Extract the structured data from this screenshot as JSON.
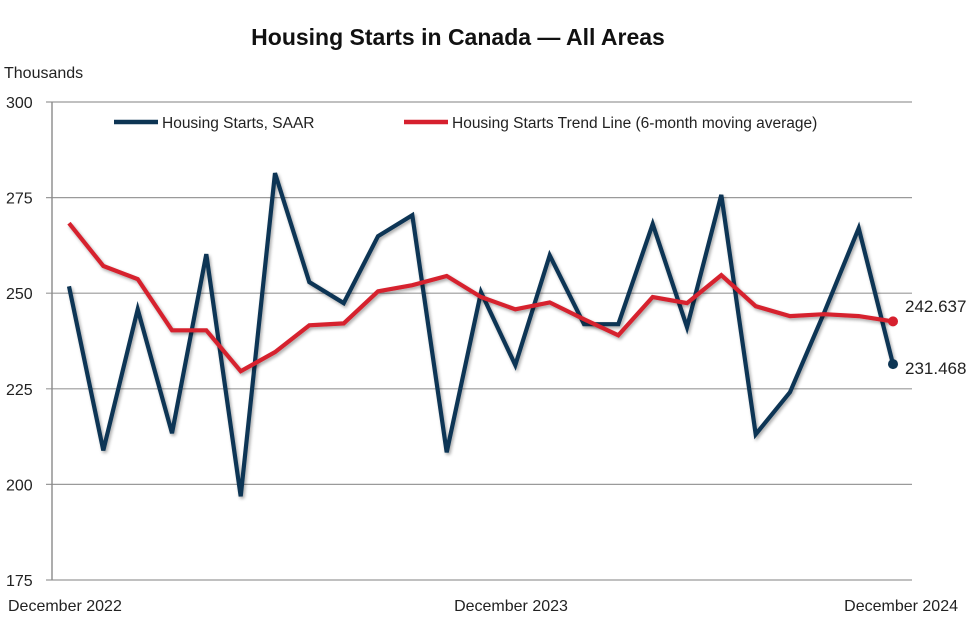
{
  "chart_data": {
    "type": "line",
    "title": "Housing Starts in Canada — All Areas",
    "ylabel": "Thousands",
    "xlabel": "",
    "ylim": [
      175,
      300
    ],
    "yticks": [
      175,
      200,
      225,
      250,
      275,
      300
    ],
    "ytick_labels": [
      "175",
      "200",
      "225",
      "250",
      "275",
      "300"
    ],
    "grid": true,
    "legend_position": "top",
    "x": [
      "Dec 2022",
      "Jan 2023",
      "Feb 2023",
      "Mar 2023",
      "Apr 2023",
      "May 2023",
      "Jun 2023",
      "Jul 2023",
      "Aug 2023",
      "Sep 2023",
      "Oct 2023",
      "Nov 2023",
      "Dec 2023",
      "Jan 2024",
      "Feb 2024",
      "Mar 2024",
      "Apr 2024",
      "May 2024",
      "Jun 2024",
      "Jul 2024",
      "Aug 2024",
      "Sep 2024",
      "Oct 2024",
      "Nov 2024",
      "Dec 2024"
    ],
    "xtick_labels": [
      {
        "index": 0,
        "label": "December 2022"
      },
      {
        "index": 12,
        "label": "December 2023"
      },
      {
        "index": 24,
        "label": "December 2024"
      }
    ],
    "series": [
      {
        "name": "Housing Starts, SAAR",
        "color": "#0d3554",
        "values": [
          251.8,
          208.9,
          245.8,
          213.4,
          260.2,
          196.9,
          281.4,
          252.9,
          247.4,
          264.9,
          270.4,
          208.4,
          250.3,
          231.2,
          259.9,
          241.9,
          241.9,
          268.1,
          241.1,
          275.7,
          213.1,
          224.1,
          245.0,
          267.0,
          231.468
        ],
        "end_label": "231.468"
      },
      {
        "name": "Housing Starts Trend Line (6-month moving average)",
        "color": "#d6202e",
        "values": [
          268.3,
          257.1,
          253.7,
          240.3,
          240.3,
          229.6,
          234.6,
          241.6,
          242.1,
          250.5,
          252.1,
          254.5,
          249.0,
          245.8,
          247.6,
          243.2,
          239.0,
          249.0,
          247.4,
          254.7,
          246.6,
          244.0,
          244.5,
          244.0,
          242.637
        ],
        "end_label": "242.637"
      }
    ]
  }
}
